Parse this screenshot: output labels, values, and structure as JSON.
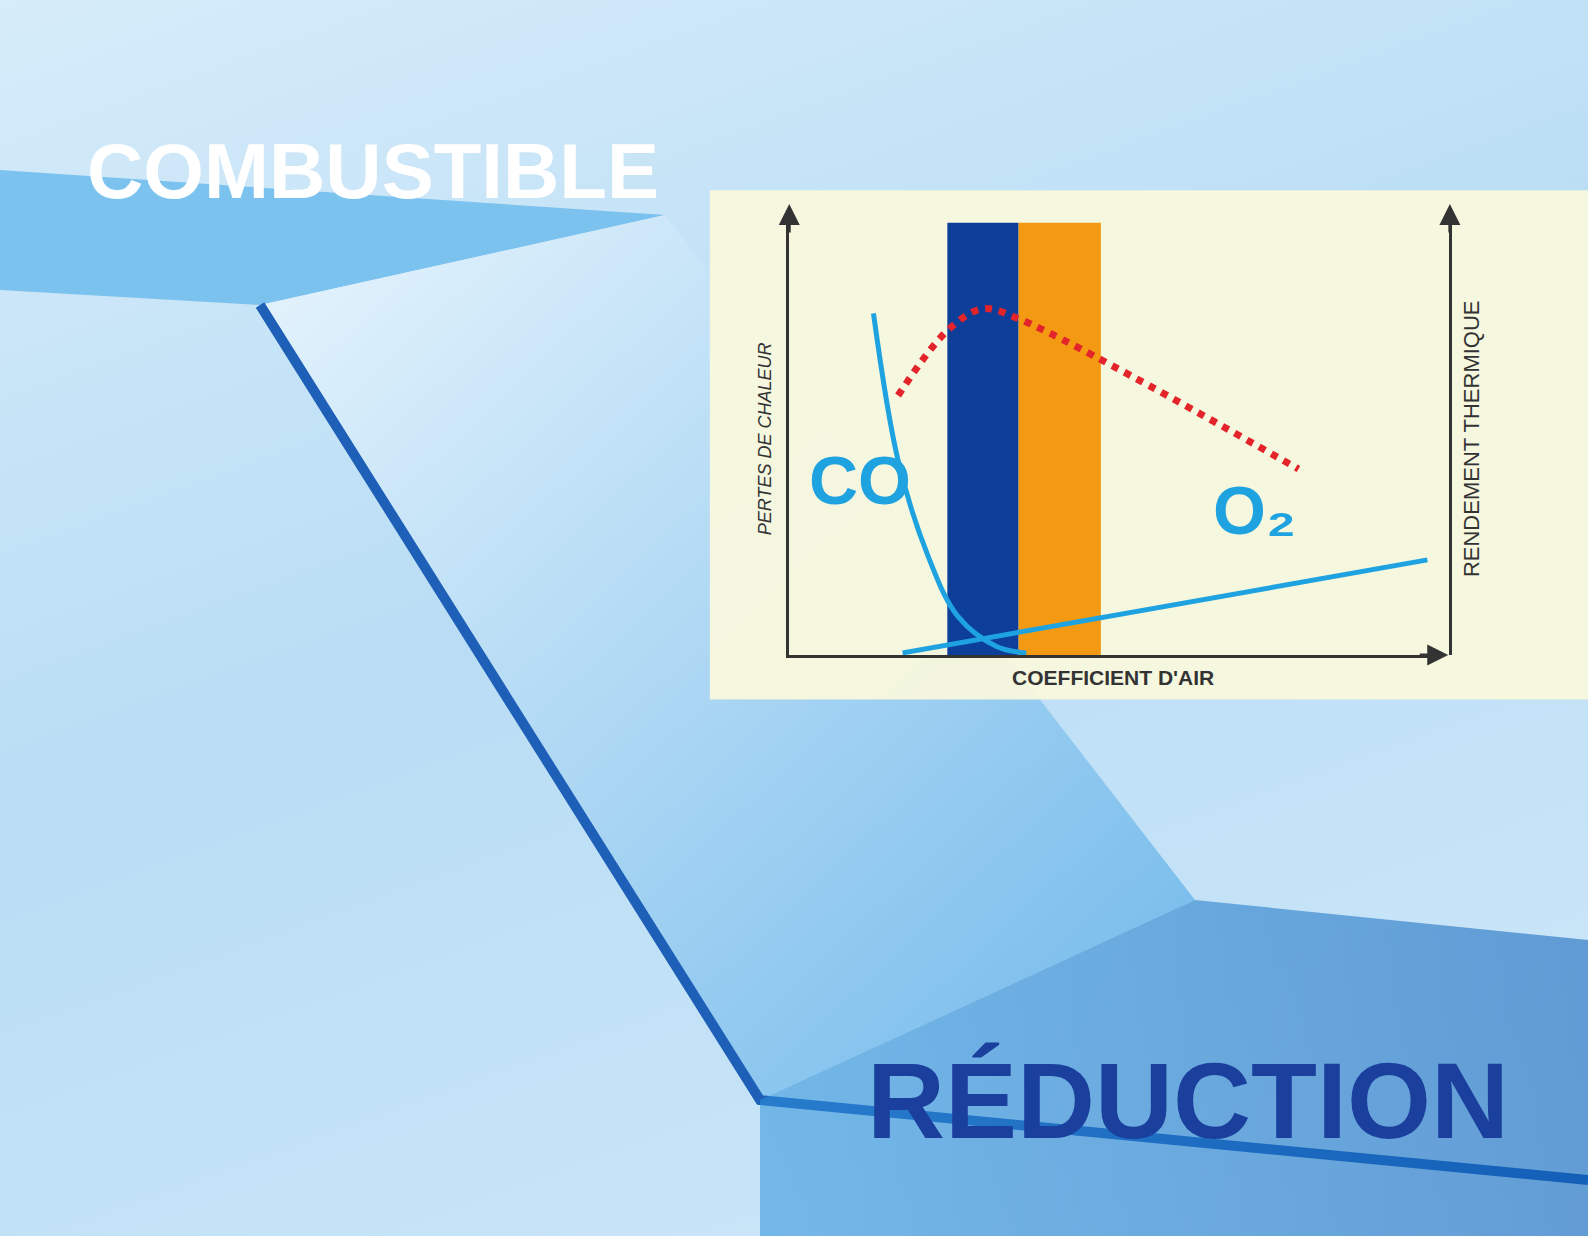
{
  "chart_data": {
    "type": "line",
    "labels": [
      "COMBUSTIBLE",
      "RÉDUCTION"
    ],
    "x_label": "COEFFICIENT D'AIR",
    "y_label": "PERTES DE CHALEUR",
    "y2_label": "RENDEMENT THERMIQUE",
    "xlim": [
      0,
      10
    ],
    "ylim": [
      0,
      10
    ],
    "y2lim": [
      0,
      10
    ],
    "tick_labels": false,
    "grid": false,
    "bands": [
      {
        "from": 2.44,
        "to": 3.54,
        "color": "#0d3f9a"
      },
      {
        "from": 3.54,
        "to": 4.81,
        "color": "#f39a12"
      }
    ],
    "series": [
      {
        "name": "CO",
        "color": "#1fa3e0",
        "line_style": "solid",
        "x": [
          1.3,
          1.68,
          2.14,
          2.6,
          3.2,
          3.66
        ],
        "values": [
          7.9,
          4.5,
          2.3,
          0.9,
          0.2,
          0.05
        ]
      },
      {
        "name": "O₂",
        "color": "#1fa3e0",
        "line_style": "solid",
        "x": [
          1.75,
          9.85
        ],
        "values": [
          0.05,
          2.2
        ]
      },
      {
        "color": "#e3242b",
        "line_style": "dotted",
        "axis": "y2",
        "x": [
          1.68,
          2.44,
          2.98,
          3.5,
          7.86
        ],
        "values": [
          6.0,
          7.5,
          8.0,
          7.8,
          4.3
        ]
      }
    ]
  }
}
